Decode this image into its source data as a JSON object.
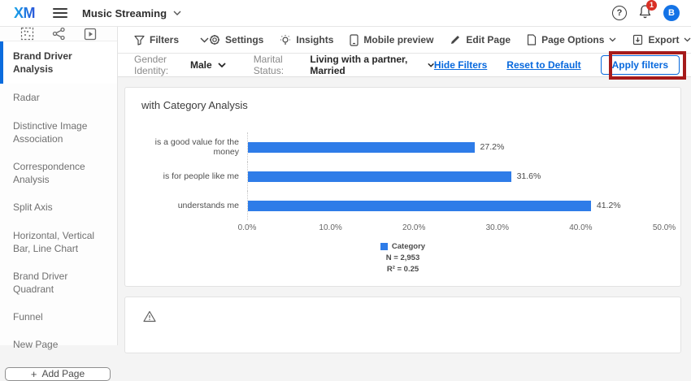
{
  "header": {
    "logo_text": "XM",
    "project_title": "Music Streaming",
    "help_label": "?",
    "notification_count": "1",
    "avatar_initial": "B"
  },
  "sidebar": {
    "items": [
      {
        "label": "Brand Driver Analysis",
        "active": true
      },
      {
        "label": "Radar",
        "active": false
      },
      {
        "label": "Distinctive Image Association",
        "active": false
      },
      {
        "label": "Correspondence Analysis",
        "active": false
      },
      {
        "label": "Split Axis",
        "active": false
      },
      {
        "label": "Horizontal, Vertical Bar, Line Chart",
        "active": false
      },
      {
        "label": "Brand Driver Quadrant",
        "active": false
      },
      {
        "label": "Funnel",
        "active": false
      },
      {
        "label": "New Page",
        "active": false
      }
    ],
    "add_page_label": "Add Page",
    "add_page_plus": "+"
  },
  "toolbar": {
    "filters_label": "Filters",
    "settings_label": "Settings",
    "insights_label": "Insights",
    "mobile_preview_label": "Mobile preview",
    "edit_page_label": "Edit Page",
    "page_options_label": "Page Options",
    "export_label": "Export"
  },
  "filter_bar": {
    "gender_label": "Gender Identity:",
    "gender_value": "Male",
    "marital_label": "Marital Status:",
    "marital_value": "Living with a partner, Married",
    "hide_filters_label": "Hide Filters",
    "reset_label": "Reset to Default",
    "apply_label": "Apply filters"
  },
  "chart_data": {
    "type": "bar",
    "orientation": "horizontal",
    "title": "with Category Analysis",
    "categories": [
      "is a good value for the money",
      "is for people like me",
      "understands me"
    ],
    "values": [
      27.2,
      31.6,
      41.2
    ],
    "value_labels": [
      "27.2%",
      "31.6%",
      "41.2%"
    ],
    "x_ticks": [
      "0.0%",
      "10.0%",
      "20.0%",
      "30.0%",
      "40.0%",
      "50.0%"
    ],
    "xlim": [
      0,
      50
    ],
    "grid": false,
    "legend_position": "bottom-center",
    "legend": {
      "series_name": "Category",
      "n_label": "N = 2,953",
      "r2_label": "R² = 0.25"
    },
    "bar_color": "#2e7ce8"
  },
  "colors": {
    "accent_blue": "#0768dd",
    "bar_blue": "#2e7ce8",
    "annotation_red": "#a61b1b",
    "badge_red": "#d93025",
    "avatar_blue": "#1473e6"
  }
}
